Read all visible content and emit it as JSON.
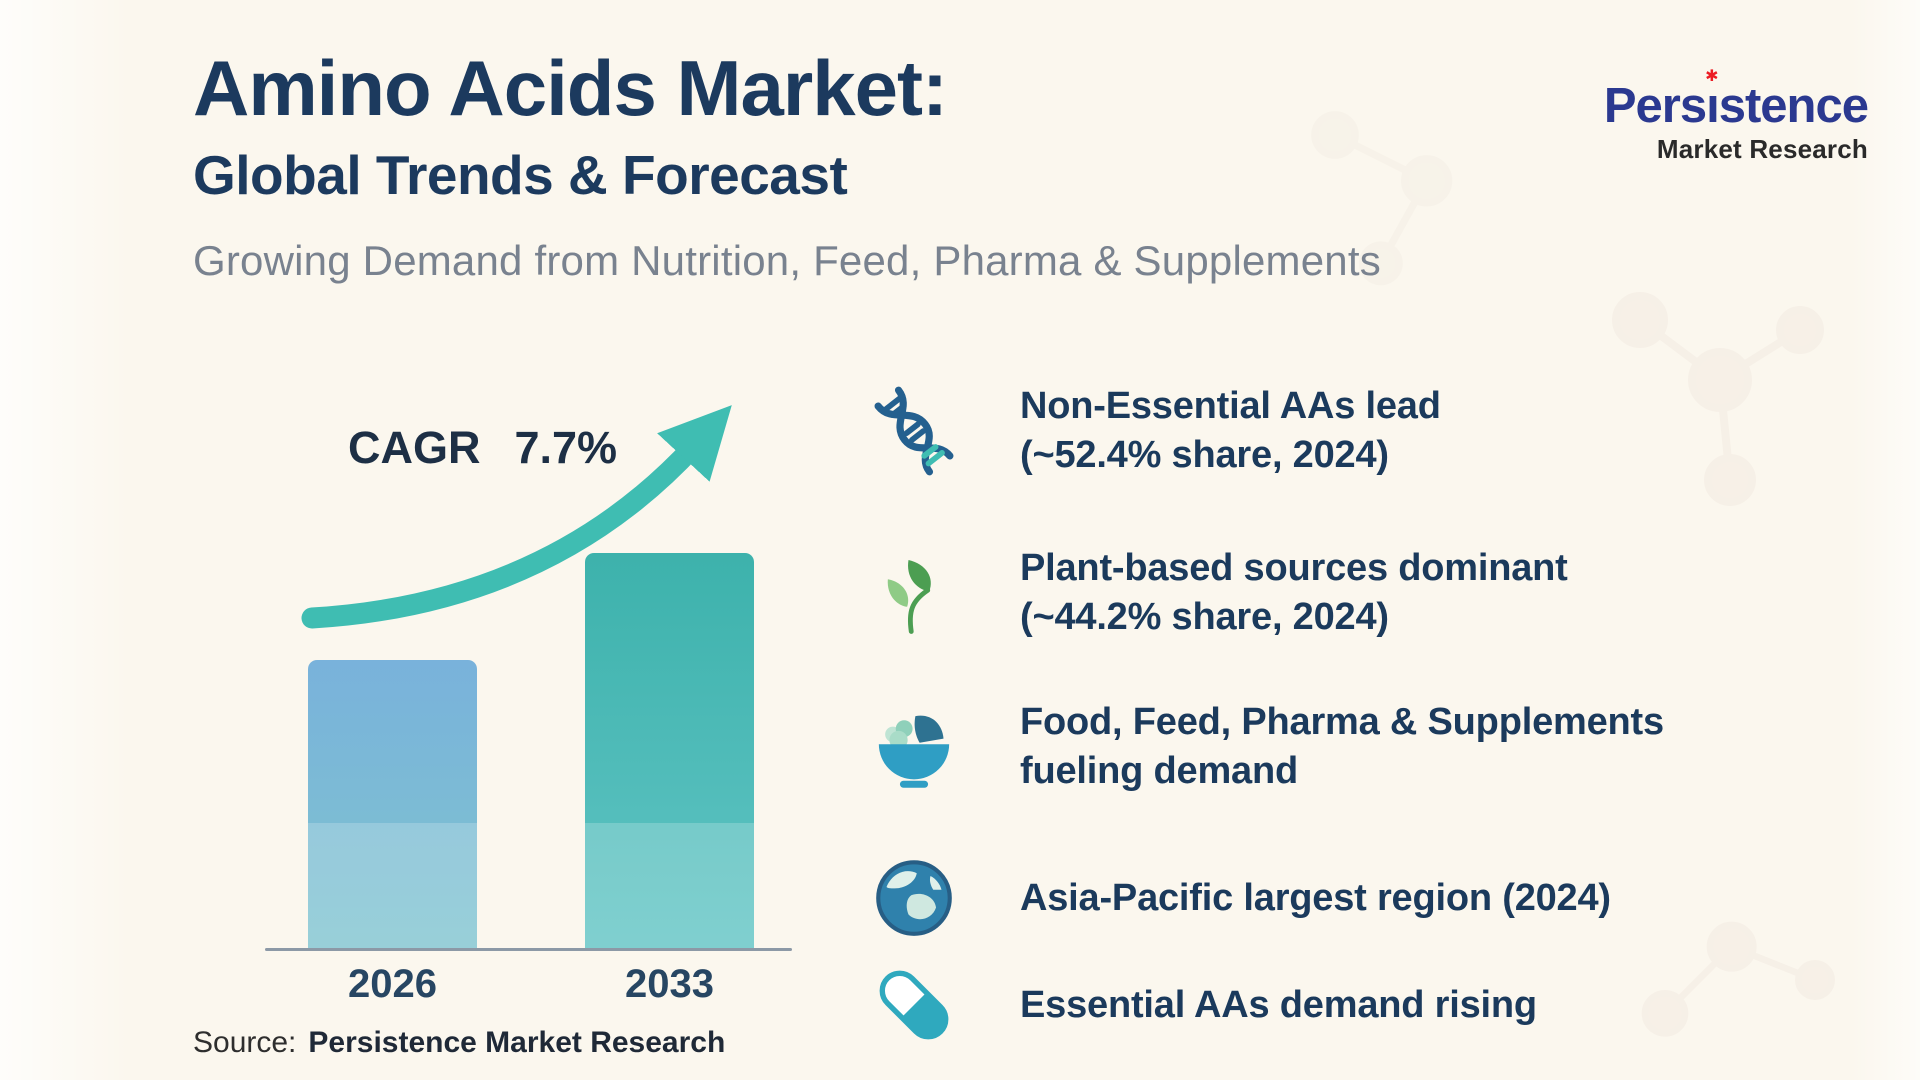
{
  "header": {
    "title_line1": "Amino Acids Market:",
    "title_line2": "Global Trends & Forecast",
    "tagline": "Growing Demand from Nutrition, Feed, Pharma & Supplements"
  },
  "logo": {
    "name_pre": "Pers",
    "name_i": "ı",
    "name_post": "stence",
    "star": "✱",
    "tagline": "Market Research"
  },
  "chart": {
    "cagr_label": "CAGR",
    "cagr_value": "7.7%"
  },
  "chart_data": {
    "type": "bar",
    "title": "Amino Acids Market growth forecast",
    "categories": [
      "2026",
      "2033"
    ],
    "values": [
      0.73,
      1.0
    ],
    "value_note": "relative bar heights; no numeric axis shown in graphic",
    "annotations": [
      "CAGR 7.7%"
    ],
    "xlabel": "",
    "ylabel": "",
    "grid": false,
    "legend": false
  },
  "bullets": [
    {
      "icon": "dna-icon",
      "line1": "Non-Essential AAs lead",
      "line2": "(~52.4% share, 2024)"
    },
    {
      "icon": "leaf-icon",
      "line1": "Plant-based sources dominant",
      "line2": "(~44.2% share, 2024)"
    },
    {
      "icon": "bowl-icon",
      "line1": "Food, Feed, Pharma & Supplements",
      "line2": "fueling demand"
    },
    {
      "icon": "globe-icon",
      "line1": "Asia-Pacific largest region (2024)",
      "line2": ""
    },
    {
      "icon": "capsule-icon",
      "line1": "Essential AAs demand rising",
      "line2": ""
    }
  ],
  "source": {
    "label": "Source:",
    "value": "Persistence Market Research"
  },
  "colors": {
    "background": "#FBF7EE",
    "title": "#1C3A5E",
    "tagline_gray": "#79828F",
    "arrow_teal": "#3FBDB2",
    "bar_2026_top": "#79B2DB",
    "bar_2026_bottom": "#7FC4CF",
    "bar_2033_top": "#3DB2AC",
    "bar_2033_bottom": "#60C4C4",
    "logo_blue": "#2B3990",
    "logo_red": "#EC1C24",
    "logo_dark": "#2A2A2A"
  }
}
